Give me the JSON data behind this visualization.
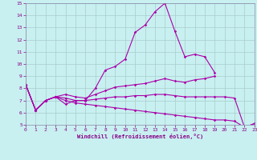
{
  "bg_color": "#c8f0f0",
  "line_color": "#aa00aa",
  "grid_color": "#aacccc",
  "spine_color": "#8888aa",
  "xlabel": "Windchill (Refroidissement éolien,°C)",
  "xlabel_color": "#880088",
  "tick_color": "#880088",
  "ylim": [
    5,
    15
  ],
  "xlim": [
    0,
    23
  ],
  "yticks": [
    5,
    6,
    7,
    8,
    9,
    10,
    11,
    12,
    13,
    14,
    15
  ],
  "xticks": [
    0,
    1,
    2,
    3,
    4,
    5,
    6,
    7,
    8,
    9,
    10,
    11,
    12,
    13,
    14,
    15,
    16,
    17,
    18,
    19,
    20,
    21,
    22,
    23
  ],
  "series": [
    [
      8.3,
      6.2,
      7.0,
      7.3,
      6.7,
      7.0,
      7.0,
      8.0,
      9.5,
      9.8,
      10.4,
      12.6,
      13.2,
      14.3,
      15.0,
      12.7,
      10.6,
      10.8,
      10.6,
      9.3,
      null,
      null,
      null,
      null
    ],
    [
      8.3,
      6.2,
      7.0,
      7.3,
      7.5,
      7.3,
      7.2,
      7.5,
      7.8,
      8.1,
      8.2,
      8.3,
      8.4,
      8.6,
      8.8,
      8.6,
      8.5,
      8.7,
      8.8,
      9.0,
      null,
      null,
      null,
      null
    ],
    [
      8.3,
      6.2,
      7.0,
      7.3,
      7.2,
      7.0,
      7.0,
      7.1,
      7.2,
      7.3,
      7.3,
      7.4,
      7.4,
      7.5,
      7.5,
      7.4,
      7.3,
      7.3,
      7.3,
      7.3,
      7.3,
      7.2,
      4.8,
      5.1
    ],
    [
      8.3,
      6.2,
      7.0,
      7.3,
      7.0,
      6.8,
      6.7,
      6.6,
      6.5,
      6.4,
      6.3,
      6.2,
      6.1,
      6.0,
      5.9,
      5.8,
      5.7,
      5.6,
      5.5,
      5.4,
      5.4,
      5.3,
      4.8,
      5.1
    ]
  ]
}
